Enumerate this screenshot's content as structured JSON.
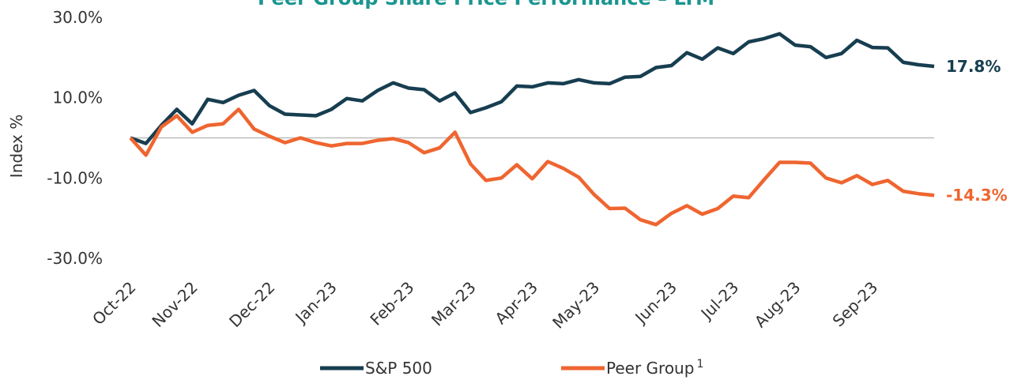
{
  "chart_data": {
    "type": "line",
    "title": "Peer Group Share Price Performance – LTM",
    "y_label": "Index %",
    "categories": [
      "Oct-22",
      null,
      null,
      null,
      "Nov-22",
      null,
      null,
      null,
      null,
      "Dec-22",
      null,
      null,
      null,
      "Jan-23",
      null,
      null,
      null,
      null,
      "Feb-23",
      null,
      null,
      null,
      "Mar-23",
      null,
      null,
      null,
      "Apr-23",
      null,
      null,
      null,
      "May-23",
      null,
      null,
      null,
      null,
      "Jun-23",
      null,
      null,
      null,
      "Jul-23",
      null,
      null,
      null,
      "Aug-23",
      null,
      null,
      null,
      null,
      "Sep-23",
      null,
      null,
      null,
      null
    ],
    "series": [
      {
        "name": "S&P 500",
        "color": "#173e50",
        "end_label": "17.8%",
        "values": [
          0,
          -1.4,
          3.1,
          7.1,
          3.5,
          9.6,
          8.8,
          10.6,
          11.8,
          8.0,
          5.9,
          5.7,
          5.5,
          7.1,
          9.8,
          9.2,
          11.8,
          13.7,
          12.4,
          12.0,
          9.2,
          11.2,
          6.3,
          7.5,
          9.0,
          12.9,
          12.7,
          13.7,
          13.5,
          14.5,
          13.7,
          13.5,
          15.1,
          15.3,
          17.5,
          18.0,
          21.2,
          19.6,
          22.4,
          21.0,
          23.9,
          24.7,
          25.9,
          23.1,
          22.7,
          20.0,
          21.0,
          24.3,
          22.5,
          22.4,
          18.8,
          18.2,
          17.8
        ]
      },
      {
        "name": "Peer Group",
        "footnote": "1",
        "color": "#ef6530",
        "end_label": "-14.3%",
        "values": [
          0,
          -4.3,
          2.7,
          5.5,
          1.4,
          3.1,
          3.5,
          7.1,
          2.2,
          0.4,
          -1.2,
          0,
          -1.2,
          -2.0,
          -1.4,
          -1.4,
          -0.6,
          -0.2,
          -1.2,
          -3.7,
          -2.5,
          1.4,
          -6.5,
          -10.6,
          -10.0,
          -6.7,
          -10.2,
          -5.9,
          -7.6,
          -9.8,
          -14.1,
          -17.6,
          -17.5,
          -20.4,
          -21.6,
          -18.8,
          -16.9,
          -19.0,
          -17.6,
          -14.5,
          -14.9,
          -10.4,
          -6.1,
          -6.1,
          -6.3,
          -10.0,
          -11.2,
          -9.4,
          -11.6,
          -10.6,
          -13.3,
          -13.9,
          -14.3
        ]
      }
    ],
    "ylim": [
      -30,
      30
    ],
    "yticks": [
      {
        "value": 30,
        "label": "30.0%"
      },
      {
        "value": 10,
        "label": "10.0%"
      },
      {
        "value": -10,
        "label": "-10.0%"
      },
      {
        "value": -30,
        "label": "-30.0%"
      }
    ],
    "grid": false,
    "legend": "bottom"
  }
}
